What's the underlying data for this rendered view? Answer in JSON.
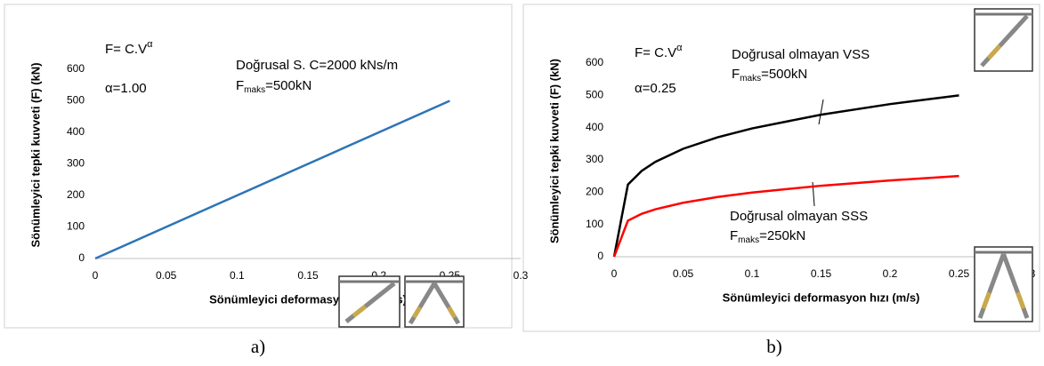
{
  "chart_data": [
    {
      "type": "line",
      "caption": "a)",
      "xlabel": "Sönümleyici deformasyon hızı (m/s)",
      "ylabel": "Sönümleyici tepki kuvveti  (F) (kN)",
      "x": [
        0,
        0.25
      ],
      "series": [
        {
          "name": "Doğrusal S. C=2000 kNs/m",
          "color": "#2e75b6",
          "values": [
            0,
            500
          ]
        }
      ],
      "xlim": [
        0,
        0.3
      ],
      "xticks": [
        0,
        0.05,
        0.1,
        0.15,
        0.2,
        0.25,
        0.3
      ],
      "ylim": [
        0,
        600
      ],
      "yticks": [
        0,
        100,
        200,
        300,
        400,
        500,
        600
      ],
      "annotations": [
        {
          "text": "F= C.V",
          "sup": "α"
        },
        {
          "text": "α=1.00"
        },
        {
          "text": "F",
          "sub": "maks",
          "rest": "=500kN"
        }
      ]
    },
    {
      "type": "line",
      "caption": "b)",
      "xlabel": "Sönümleyici deformasyon hızı (m/s)",
      "ylabel": "Sönümleyici tepki kuvveti  (F) (kN)",
      "x": [
        0,
        0.01,
        0.02,
        0.03,
        0.05,
        0.075,
        0.1,
        0.15,
        0.2,
        0.25
      ],
      "series": [
        {
          "name": "Doğrusal olmayan VSS",
          "color": "#000000",
          "values": [
            0,
            223.6,
            265.9,
            294.3,
            334.4,
            370.1,
            397.6,
            440.1,
            472.9,
            500
          ]
        },
        {
          "name": "Doğrusal olmayan SSS",
          "color": "#ff0000",
          "values": [
            0,
            111.8,
            133,
            147.1,
            167.2,
            185,
            198.8,
            220,
            236.4,
            250
          ]
        }
      ],
      "xlim": [
        0,
        0.3
      ],
      "xticks": [
        0,
        0.05,
        0.1,
        0.15,
        0.2,
        0.25,
        0.3
      ],
      "ylim": [
        0,
        600
      ],
      "yticks": [
        0,
        100,
        200,
        300,
        400,
        500,
        600
      ],
      "annotations": [
        {
          "text": "F= C.V",
          "sup": "α"
        },
        {
          "text": "α=0.25"
        },
        {
          "text": "F",
          "sub": "maks",
          "rest": "=500kN"
        },
        {
          "text": "F",
          "sub": "maks",
          "rest": "=250kN"
        }
      ]
    }
  ]
}
